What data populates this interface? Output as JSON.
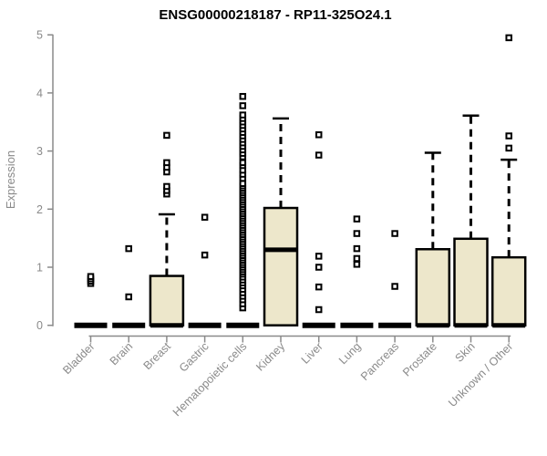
{
  "chart_data": {
    "type": "boxplot",
    "title": "ENSG00000218187 - RP11-325O24.1",
    "ylabel": "Expression",
    "xlabel": "",
    "ylim": [
      0,
      5
    ],
    "yticks": [
      0,
      1,
      2,
      3,
      4,
      5
    ],
    "grid": false,
    "legend": "none",
    "colors": {
      "box_fill": "#EDE7CB",
      "box_stroke": "#000000",
      "median": "#000000",
      "whisker": "#000000",
      "axis": "#8A8A8A",
      "tick_text": "#8A8A8A",
      "title_text": "#000000",
      "background": "#FFFFFF"
    },
    "categories": [
      "Bladder",
      "Brain",
      "Breast",
      "Gastric",
      "Hematopoietic cells",
      "Kidney",
      "Liver",
      "Lung",
      "Pancreas",
      "Prostate",
      "Skin",
      "Unknown / Other"
    ],
    "series": [
      {
        "category": "Bladder",
        "q1": 0,
        "median": 0,
        "q3": 0,
        "whisker_low": 0,
        "whisker_high": 0,
        "outliers": [
          0.72,
          0.76,
          0.8,
          0.84
        ]
      },
      {
        "category": "Brain",
        "q1": 0,
        "median": 0,
        "q3": 0,
        "whisker_low": 0,
        "whisker_high": 0,
        "outliers": [
          0.49,
          1.32
        ]
      },
      {
        "category": "Breast",
        "q1": 0,
        "median": 0,
        "q3": 0.85,
        "whisker_low": 0,
        "whisker_high": 1.91,
        "outliers": [
          2.26,
          2.32,
          2.39,
          2.64,
          2.72,
          2.8,
          3.27
        ]
      },
      {
        "category": "Gastric",
        "q1": 0,
        "median": 0,
        "q3": 0,
        "whisker_low": 0,
        "whisker_high": 0,
        "outliers": [
          1.21,
          1.86
        ]
      },
      {
        "category": "Hematopoietic cells",
        "q1": 0,
        "median": 0,
        "q3": 0,
        "whisker_low": 0,
        "whisker_high": 0,
        "outliers": [
          0.3,
          0.37,
          0.44,
          0.5,
          0.56,
          0.62,
          0.68,
          0.73,
          0.78,
          0.83,
          0.88,
          0.92,
          0.96,
          1.0,
          1.04,
          1.08,
          1.12,
          1.16,
          1.2,
          1.24,
          1.28,
          1.32,
          1.36,
          1.4,
          1.44,
          1.48,
          1.52,
          1.56,
          1.6,
          1.64,
          1.68,
          1.72,
          1.76,
          1.8,
          1.84,
          1.88,
          1.92,
          1.96,
          2.0,
          2.04,
          2.08,
          2.12,
          2.16,
          2.2,
          2.24,
          2.28,
          2.32,
          2.36,
          2.4,
          2.44,
          2.53,
          2.6,
          2.67,
          2.75,
          2.8,
          2.9,
          2.96,
          3.02,
          3.08,
          3.14,
          3.2,
          3.26,
          3.32,
          3.38,
          3.44,
          3.5,
          3.56,
          3.62,
          3.78,
          3.94
        ]
      },
      {
        "category": "Kidney",
        "q1": 0,
        "median": 1.3,
        "q3": 2.02,
        "whisker_low": 0,
        "whisker_high": 3.56,
        "outliers": []
      },
      {
        "category": "Liver",
        "q1": 0,
        "median": 0,
        "q3": 0,
        "whisker_low": 0,
        "whisker_high": 0,
        "outliers": [
          0.27,
          0.66,
          1.0,
          1.19,
          2.93,
          3.28
        ]
      },
      {
        "category": "Lung",
        "q1": 0,
        "median": 0,
        "q3": 0,
        "whisker_low": 0,
        "whisker_high": 0,
        "outliers": [
          1.05,
          1.15,
          1.32,
          1.58,
          1.83
        ]
      },
      {
        "category": "Pancreas",
        "q1": 0,
        "median": 0,
        "q3": 0,
        "whisker_low": 0,
        "whisker_high": 0,
        "outliers": [
          0.67,
          1.58
        ]
      },
      {
        "category": "Prostate",
        "q1": 0,
        "median": 0,
        "q3": 1.31,
        "whisker_low": 0,
        "whisker_high": 2.97,
        "outliers": []
      },
      {
        "category": "Skin",
        "q1": 0,
        "median": 0,
        "q3": 1.49,
        "whisker_low": 0,
        "whisker_high": 3.61,
        "outliers": []
      },
      {
        "category": "Unknown / Other",
        "q1": 0,
        "median": 0,
        "q3": 1.17,
        "whisker_low": 0,
        "whisker_high": 2.85,
        "outliers": [
          3.05,
          3.26,
          4.95
        ]
      }
    ]
  }
}
